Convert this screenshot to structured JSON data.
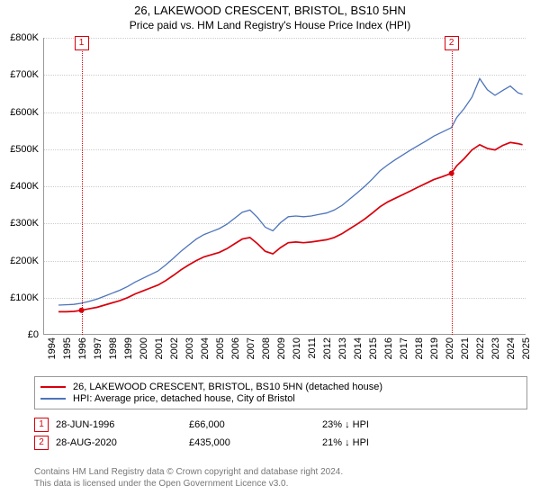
{
  "title": "26, LAKEWOOD CRESCENT, BRISTOL, BS10 5HN",
  "subtitle": "Price paid vs. HM Land Registry's House Price Index (HPI)",
  "chart": {
    "type": "line",
    "plot_bg": "#ffffff",
    "grid_color": "#cccccc",
    "axis_color": "#999999",
    "label_fontsize": 11,
    "ylim": [
      0,
      800000
    ],
    "y_ticks": [
      0,
      100000,
      200000,
      300000,
      400000,
      500000,
      600000,
      700000,
      800000
    ],
    "y_tick_labels": [
      "£0",
      "£100K",
      "£200K",
      "£300K",
      "£400K",
      "£500K",
      "£600K",
      "£700K",
      "£800K"
    ],
    "xlim": [
      1994,
      2025.5
    ],
    "x_ticks": [
      1994,
      1995,
      1996,
      1997,
      1998,
      1999,
      2000,
      2001,
      2002,
      2003,
      2004,
      2005,
      2006,
      2007,
      2008,
      2009,
      2010,
      2011,
      2012,
      2013,
      2014,
      2015,
      2016,
      2017,
      2018,
      2019,
      2020,
      2021,
      2022,
      2023,
      2024,
      2025
    ],
    "series": [
      {
        "name": "26, LAKEWOOD CRESCENT, BRISTOL, BS10 5HN (detached house)",
        "color": "#d8000c",
        "line_width": 1.7,
        "data": [
          [
            1995.0,
            62000
          ],
          [
            1995.5,
            62000
          ],
          [
            1996.0,
            63000
          ],
          [
            1996.5,
            66000
          ],
          [
            1997.0,
            70000
          ],
          [
            1997.5,
            74000
          ],
          [
            1998.0,
            80000
          ],
          [
            1998.5,
            86000
          ],
          [
            1999.0,
            92000
          ],
          [
            1999.5,
            100000
          ],
          [
            2000.0,
            110000
          ],
          [
            2000.5,
            118000
          ],
          [
            2001.0,
            126000
          ],
          [
            2001.5,
            134000
          ],
          [
            2002.0,
            146000
          ],
          [
            2002.5,
            160000
          ],
          [
            2003.0,
            175000
          ],
          [
            2003.5,
            188000
          ],
          [
            2004.0,
            200000
          ],
          [
            2004.5,
            210000
          ],
          [
            2005.0,
            216000
          ],
          [
            2005.5,
            222000
          ],
          [
            2006.0,
            232000
          ],
          [
            2006.5,
            245000
          ],
          [
            2007.0,
            258000
          ],
          [
            2007.5,
            262000
          ],
          [
            2008.0,
            245000
          ],
          [
            2008.5,
            225000
          ],
          [
            2009.0,
            218000
          ],
          [
            2009.5,
            235000
          ],
          [
            2010.0,
            248000
          ],
          [
            2010.5,
            250000
          ],
          [
            2011.0,
            248000
          ],
          [
            2011.5,
            250000
          ],
          [
            2012.0,
            253000
          ],
          [
            2012.5,
            256000
          ],
          [
            2013.0,
            262000
          ],
          [
            2013.5,
            272000
          ],
          [
            2014.0,
            285000
          ],
          [
            2014.5,
            298000
          ],
          [
            2015.0,
            312000
          ],
          [
            2015.5,
            328000
          ],
          [
            2016.0,
            345000
          ],
          [
            2016.5,
            358000
          ],
          [
            2017.0,
            368000
          ],
          [
            2017.5,
            378000
          ],
          [
            2018.0,
            388000
          ],
          [
            2018.5,
            398000
          ],
          [
            2019.0,
            408000
          ],
          [
            2019.5,
            418000
          ],
          [
            2020.0,
            425000
          ],
          [
            2020.66,
            435000
          ],
          [
            2021.0,
            455000
          ],
          [
            2021.5,
            475000
          ],
          [
            2022.0,
            498000
          ],
          [
            2022.5,
            512000
          ],
          [
            2023.0,
            502000
          ],
          [
            2023.5,
            498000
          ],
          [
            2024.0,
            510000
          ],
          [
            2024.5,
            518000
          ],
          [
            2025.0,
            515000
          ],
          [
            2025.3,
            512000
          ]
        ]
      },
      {
        "name": "HPI: Average price, detached house, City of Bristol",
        "color": "#4d74bb",
        "line_width": 1.3,
        "data": [
          [
            1995.0,
            80000
          ],
          [
            1995.5,
            81000
          ],
          [
            1996.0,
            82000
          ],
          [
            1996.5,
            85000
          ],
          [
            1997.0,
            90000
          ],
          [
            1997.5,
            96000
          ],
          [
            1998.0,
            104000
          ],
          [
            1998.5,
            112000
          ],
          [
            1999.0,
            120000
          ],
          [
            1999.5,
            130000
          ],
          [
            2000.0,
            142000
          ],
          [
            2000.5,
            152000
          ],
          [
            2001.0,
            162000
          ],
          [
            2001.5,
            172000
          ],
          [
            2002.0,
            188000
          ],
          [
            2002.5,
            206000
          ],
          [
            2003.0,
            225000
          ],
          [
            2003.5,
            242000
          ],
          [
            2004.0,
            258000
          ],
          [
            2004.5,
            270000
          ],
          [
            2005.0,
            278000
          ],
          [
            2005.5,
            286000
          ],
          [
            2006.0,
            298000
          ],
          [
            2006.5,
            314000
          ],
          [
            2007.0,
            330000
          ],
          [
            2007.5,
            336000
          ],
          [
            2008.0,
            316000
          ],
          [
            2008.5,
            290000
          ],
          [
            2009.0,
            280000
          ],
          [
            2009.5,
            302000
          ],
          [
            2010.0,
            318000
          ],
          [
            2010.5,
            320000
          ],
          [
            2011.0,
            318000
          ],
          [
            2011.5,
            320000
          ],
          [
            2012.0,
            324000
          ],
          [
            2012.5,
            328000
          ],
          [
            2013.0,
            336000
          ],
          [
            2013.5,
            348000
          ],
          [
            2014.0,
            365000
          ],
          [
            2014.5,
            382000
          ],
          [
            2015.0,
            400000
          ],
          [
            2015.5,
            420000
          ],
          [
            2016.0,
            442000
          ],
          [
            2016.5,
            458000
          ],
          [
            2017.0,
            472000
          ],
          [
            2017.5,
            485000
          ],
          [
            2018.0,
            498000
          ],
          [
            2018.5,
            510000
          ],
          [
            2019.0,
            522000
          ],
          [
            2019.5,
            535000
          ],
          [
            2020.0,
            545000
          ],
          [
            2020.66,
            558000
          ],
          [
            2021.0,
            585000
          ],
          [
            2021.5,
            610000
          ],
          [
            2022.0,
            640000
          ],
          [
            2022.5,
            690000
          ],
          [
            2023.0,
            660000
          ],
          [
            2023.5,
            645000
          ],
          [
            2024.0,
            658000
          ],
          [
            2024.5,
            670000
          ],
          [
            2025.0,
            652000
          ],
          [
            2025.3,
            648000
          ]
        ]
      }
    ],
    "events": [
      {
        "n": "1",
        "x": 1996.5,
        "color": "#d8000c",
        "date": "28-JUN-1996",
        "price": "£66,000",
        "pct": "23% ↓ HPI"
      },
      {
        "n": "2",
        "x": 2020.66,
        "color": "#d8000c",
        "date": "28-AUG-2020",
        "price": "£435,000",
        "pct": "21% ↓ HPI"
      }
    ],
    "event_col_widths": {
      "date": 140,
      "price": 140,
      "pct": 140
    }
  },
  "legend": {
    "border_color": "#999999"
  },
  "footnote_line1": "Contains HM Land Registry data © Crown copyright and database right 2024.",
  "footnote_line2": "This data is licensed under the Open Government Licence v3.0."
}
